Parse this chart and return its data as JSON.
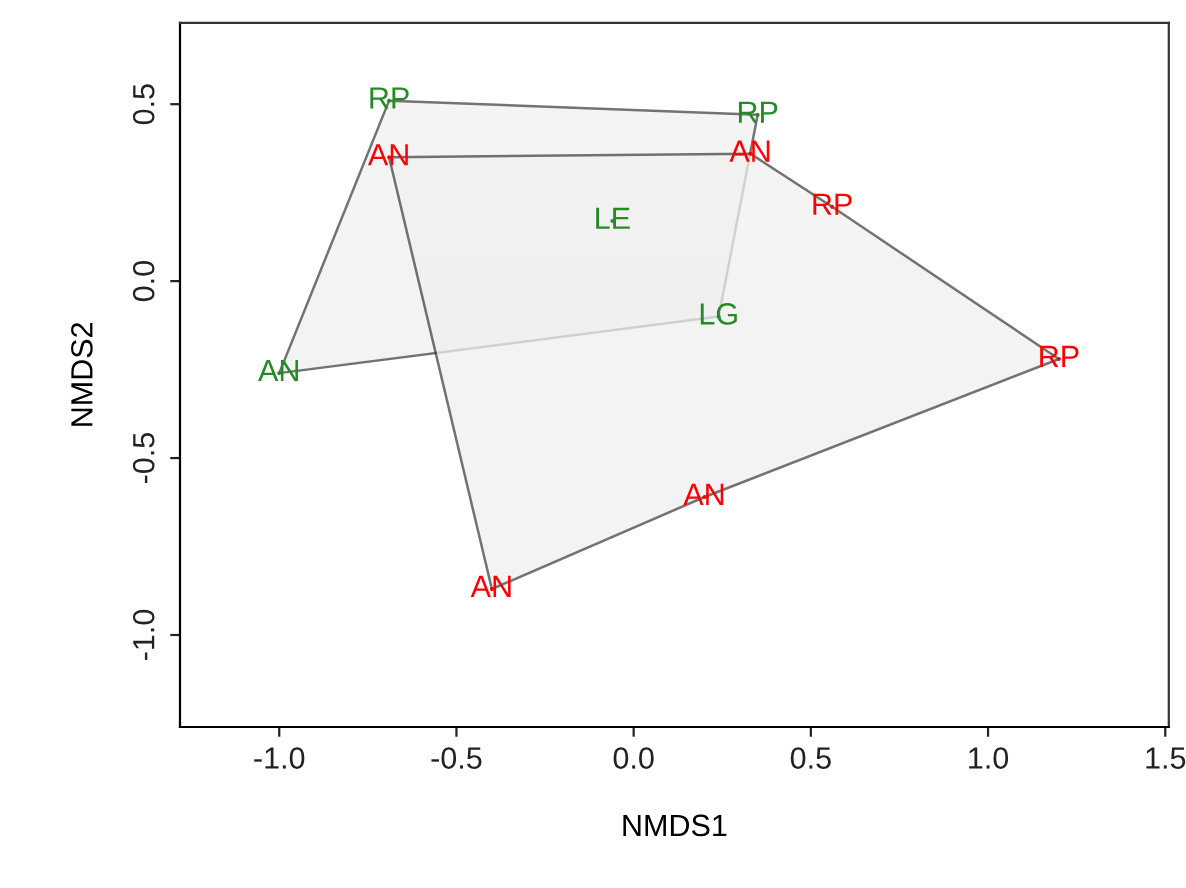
{
  "chart_data": {
    "type": "scatter",
    "xlabel": "NMDS1",
    "ylabel": "NMDS2",
    "xlim": [
      -1.28,
      1.51
    ],
    "ylim": [
      -1.26,
      0.73
    ],
    "xticks": [
      {
        "value": -1.0,
        "label": "-1.0"
      },
      {
        "value": -0.5,
        "label": "-0.5"
      },
      {
        "value": 0.0,
        "label": "0.0"
      },
      {
        "value": 0.5,
        "label": "0.5"
      },
      {
        "value": 1.0,
        "label": "1.0"
      },
      {
        "value": 1.5,
        "label": "1.5"
      }
    ],
    "yticks": [
      {
        "value": -1.0,
        "label": "-1.0"
      },
      {
        "value": -0.5,
        "label": "-0.5"
      },
      {
        "value": 0.0,
        "label": "0.0"
      },
      {
        "value": 0.5,
        "label": "0.5"
      }
    ],
    "grid": false,
    "legend": false,
    "series": [
      {
        "type": "area",
        "color": "#f0f0f0",
        "x": [
          -0.69,
          0.35,
          0.24,
          -1.0
        ],
        "values": [
          0.51,
          0.47,
          -0.1,
          -0.26
        ]
      },
      {
        "type": "area",
        "color": "#f0f0f0",
        "x": [
          -0.69,
          0.33,
          0.56,
          1.2,
          0.2,
          -0.4
        ],
        "values": [
          0.35,
          0.36,
          0.21,
          -0.22,
          -0.61,
          -0.87
        ]
      },
      {
        "color": "#228b22",
        "x": [
          -0.69,
          0.35,
          -0.06,
          0.24,
          -1.0
        ],
        "values": [
          0.51,
          0.47,
          0.17,
          -0.1,
          -0.26
        ],
        "value_labels": [
          "RP",
          "RP",
          "LE",
          "LG",
          "AN"
        ]
      },
      {
        "color": "#ff0000",
        "x": [
          -0.69,
          0.33,
          0.56,
          1.2,
          0.2,
          -0.4
        ],
        "values": [
          0.35,
          0.36,
          0.21,
          -0.22,
          -0.61,
          -0.87
        ],
        "value_labels": [
          "AN",
          "AN",
          "RP",
          "RP",
          "AN",
          "AN"
        ]
      }
    ]
  }
}
